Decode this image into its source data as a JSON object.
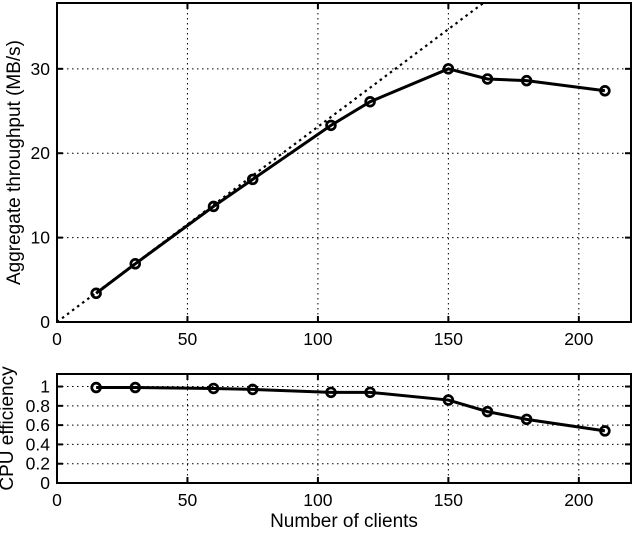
{
  "figure": {
    "background": "#ffffff",
    "foreground": "#000000",
    "xlabel": "Number of clients"
  },
  "chart_data": [
    {
      "type": "line",
      "panel": "top",
      "title": "",
      "xlabel": "",
      "ylabel": "Aggregate throughput (MB/s)",
      "xlim": [
        0,
        220
      ],
      "ylim": [
        0,
        37.8
      ],
      "xticks": [
        0,
        50,
        100,
        150,
        200
      ],
      "xtick_labels": [
        "0",
        "50",
        "100",
        "150",
        "200"
      ],
      "yticks": [
        0,
        10,
        20,
        30
      ],
      "ytick_labels": [
        "0",
        "10",
        "20",
        "30"
      ],
      "grid": true,
      "legend": "none",
      "series": [
        {
          "name": "ideal-linear-scaling",
          "style": "dotted",
          "marker": "none",
          "color": "#000000",
          "x": [
            0,
            163.4
          ],
          "y": [
            0,
            37.8
          ]
        },
        {
          "name": "aggregate-throughput",
          "style": "solid",
          "marker": "circle",
          "color": "#000000",
          "x": [
            15,
            30,
            60,
            75,
            105,
            120,
            150,
            165,
            180,
            210
          ],
          "y": [
            3.4,
            6.9,
            13.7,
            16.9,
            23.3,
            26.1,
            30.0,
            28.8,
            28.6,
            27.4
          ]
        }
      ]
    },
    {
      "type": "line",
      "panel": "bottom",
      "title": "",
      "xlabel": "Number of clients",
      "ylabel": "CPU efficiency",
      "xlim": [
        0,
        220
      ],
      "ylim": [
        0,
        1.13
      ],
      "xticks": [
        0,
        50,
        100,
        150,
        200
      ],
      "xtick_labels": [
        "0",
        "50",
        "100",
        "150",
        "200"
      ],
      "yticks": [
        0,
        0.2,
        0.4,
        0.6,
        0.8,
        1
      ],
      "ytick_labels": [
        "0",
        "0.2",
        "0.4",
        "0.6",
        "0.8",
        "1"
      ],
      "grid": true,
      "legend": "none",
      "series": [
        {
          "name": "cpu-efficiency",
          "style": "solid",
          "marker": "circle",
          "color": "#000000",
          "x": [
            15,
            30,
            60,
            75,
            105,
            120,
            150,
            165,
            180,
            210
          ],
          "y": [
            0.99,
            0.99,
            0.98,
            0.97,
            0.94,
            0.94,
            0.86,
            0.74,
            0.66,
            0.54
          ]
        }
      ]
    }
  ]
}
